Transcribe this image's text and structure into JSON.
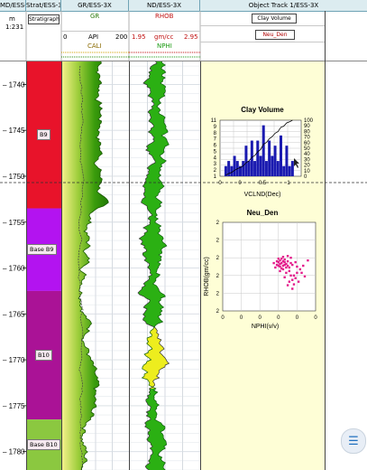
{
  "headers": {
    "depth": "MD/ESS-3X",
    "strat": "Strat/ESS-3X",
    "gr": "GR/ESS-3X",
    "nd": "ND/ESS-3X",
    "obj": "Object Track 1/ESS-3X"
  },
  "depth_unit": {
    "unit": "m",
    "scale": "1:231"
  },
  "strat_box": "Stratigraph",
  "gr_track": {
    "curve1": "GR",
    "api_min": "0",
    "api_label": "API",
    "api_max": "200",
    "curve2": "CALI"
  },
  "nd_track": {
    "curve1": "RHOB",
    "rhob_min": "1.95",
    "rhob_unit": "gm/cc",
    "rhob_max": "2.95",
    "curve2": "NPHI"
  },
  "obj_track": {
    "box1": "Clay Volume",
    "box2": "Neu_Den"
  },
  "depth_ticks": [
    "1740",
    "1745",
    "1750",
    "1755",
    "1760",
    "1765",
    "1770",
    "1775",
    "1780"
  ],
  "depth_range": [
    1737.5,
    1782
  ],
  "zones": [
    {
      "label": "B9",
      "top": 1737.5,
      "bottom": 1753.5,
      "color": "#e8132a"
    },
    {
      "label": "Base B9",
      "top": 1753.5,
      "bottom": 1762.5,
      "color": "#b313f0"
    },
    {
      "label": "B10",
      "top": 1762.5,
      "bottom": 1776.5,
      "color": "#aa1296"
    },
    {
      "label": "Base B10",
      "top": 1776.5,
      "bottom": 1782,
      "color": "#8bc840"
    }
  ],
  "colors": {
    "grid": "#7d8c98",
    "marker": "#303030",
    "panel_bg": "#fefed6",
    "gr_fill": "#3a9c0c",
    "nd_green": "#2bb013",
    "nd_yellow": "#eded1e",
    "bar": "#1a1ab0",
    "scatter": "#e31b8b"
  },
  "chart_data": [
    {
      "type": "bar",
      "title": "Clay Volume",
      "xlabel": "VCLND(Dec)",
      "ylabel": "",
      "xlim": [
        -0.2,
        1.2
      ],
      "x_ticks": [
        "0",
        "0",
        "0.5",
        "1"
      ],
      "y_left_ticks": [
        "11",
        "9",
        "8",
        "7",
        "6",
        "5",
        "4",
        "3",
        "2",
        "1"
      ],
      "y_right_ticks": [
        "100",
        "90",
        "80",
        "70",
        "60",
        "50",
        "40",
        "30",
        "20",
        "10",
        "0"
      ],
      "ylim": [
        0,
        11
      ],
      "x": [
        -0.1,
        -0.05,
        0,
        0.05,
        0.1,
        0.15,
        0.2,
        0.25,
        0.3,
        0.35,
        0.4,
        0.45,
        0.5,
        0.55,
        0.6,
        0.65,
        0.7,
        0.75,
        0.8,
        0.85,
        0.9,
        0.95,
        1.0,
        1.05
      ],
      "values": [
        2,
        3,
        2,
        4,
        3,
        2,
        3,
        6,
        3,
        7,
        3,
        7,
        4,
        10,
        3,
        7,
        4,
        6,
        3,
        8,
        2,
        6,
        2,
        3
      ],
      "cumulative_line": true
    },
    {
      "type": "scatter",
      "title": "Neu_Den",
      "xlabel": "NPHI(v/v)",
      "ylabel": "RHOB(gm/cc)",
      "x_ticks": [
        "0",
        "0",
        "0",
        "0",
        "0",
        "0"
      ],
      "y_ticks": [
        "2",
        "2",
        "2",
        "2",
        "2",
        "2"
      ],
      "xlim": [
        -0.15,
        0.45
      ],
      "ylim": [
        1.95,
        2.95
      ],
      "points": [
        [
          0.21,
          2.4
        ],
        [
          0.22,
          2.42
        ],
        [
          0.23,
          2.41
        ],
        [
          0.24,
          2.44
        ],
        [
          0.22,
          2.45
        ],
        [
          0.25,
          2.43
        ],
        [
          0.26,
          2.46
        ],
        [
          0.23,
          2.47
        ],
        [
          0.24,
          2.39
        ],
        [
          0.21,
          2.44
        ],
        [
          0.2,
          2.43
        ],
        [
          0.22,
          2.38
        ],
        [
          0.25,
          2.4
        ],
        [
          0.26,
          2.42
        ],
        [
          0.27,
          2.44
        ],
        [
          0.28,
          2.46
        ],
        [
          0.24,
          2.48
        ],
        [
          0.23,
          2.36
        ],
        [
          0.25,
          2.37
        ],
        [
          0.27,
          2.39
        ],
        [
          0.29,
          2.41
        ],
        [
          0.3,
          2.43
        ],
        [
          0.28,
          2.5
        ],
        [
          0.29,
          2.55
        ],
        [
          0.3,
          2.6
        ],
        [
          0.31,
          2.65
        ],
        [
          0.3,
          2.7
        ],
        [
          0.32,
          2.58
        ],
        [
          0.33,
          2.52
        ],
        [
          0.35,
          2.48
        ],
        [
          0.37,
          2.44
        ],
        [
          0.4,
          2.38
        ],
        [
          0.34,
          2.62
        ],
        [
          0.31,
          2.55
        ],
        [
          0.26,
          2.52
        ],
        [
          0.22,
          2.5
        ],
        [
          0.19,
          2.46
        ],
        [
          0.18,
          2.41
        ],
        [
          0.24,
          2.34
        ],
        [
          0.27,
          2.33
        ],
        [
          0.29,
          2.35
        ],
        [
          0.32,
          2.4
        ],
        [
          0.33,
          2.45
        ],
        [
          0.36,
          2.52
        ],
        [
          0.38,
          2.56
        ],
        [
          0.28,
          2.62
        ],
        [
          0.27,
          2.66
        ],
        [
          0.25,
          2.57
        ],
        [
          0.21,
          2.36
        ],
        [
          0.2,
          2.39
        ]
      ]
    }
  ]
}
